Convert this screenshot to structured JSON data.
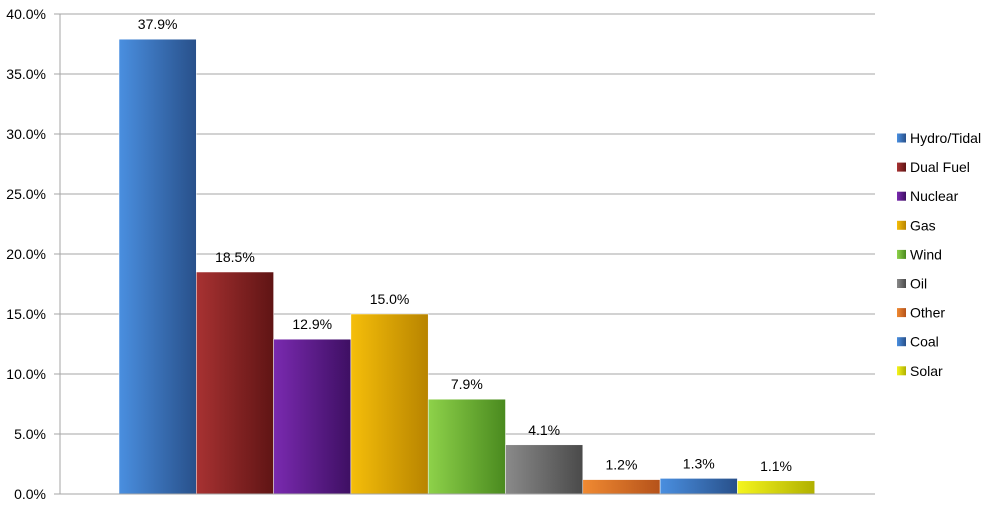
{
  "chart_data": {
    "type": "bar",
    "title": "",
    "xlabel": "",
    "ylabel": "",
    "ylim": [
      0,
      40
    ],
    "yticks": [
      "0.0%",
      "5.0%",
      "10.0%",
      "15.0%",
      "20.0%",
      "25.0%",
      "30.0%",
      "35.0%",
      "40.0%"
    ],
    "ytick_values": [
      0,
      5,
      10,
      15,
      20,
      25,
      30,
      35,
      40
    ],
    "grid": true,
    "legend_position": "right",
    "categories": [
      "Hydro/Tidal",
      "Dual Fuel",
      "Nuclear",
      "Gas",
      "Wind",
      "Oil",
      "Other",
      "Coal",
      "Solar"
    ],
    "values": [
      37.9,
      18.5,
      12.9,
      15.0,
      7.9,
      4.1,
      1.2,
      1.3,
      1.1
    ],
    "data_labels": [
      "37.9%",
      "18.5%",
      "12.9%",
      "15.0%",
      "7.9%",
      "4.1%",
      "1.2%",
      "1.3%",
      "1.1%"
    ],
    "colors": [
      {
        "light": "#4a8fe0",
        "dark": "#28508a"
      },
      {
        "light": "#a83232",
        "dark": "#5f1414"
      },
      {
        "light": "#7a2ab0",
        "dark": "#3e0f63"
      },
      {
        "light": "#f5be0a",
        "dark": "#b88400"
      },
      {
        "light": "#8ed24a",
        "dark": "#4a8a1f"
      },
      {
        "light": "#8a8a8a",
        "dark": "#4a4a4a"
      },
      {
        "light": "#f08a32",
        "dark": "#b5521a"
      },
      {
        "light": "#4a8fe0",
        "dark": "#28508a"
      },
      {
        "light": "#f5f51e",
        "dark": "#b0b000"
      }
    ]
  }
}
